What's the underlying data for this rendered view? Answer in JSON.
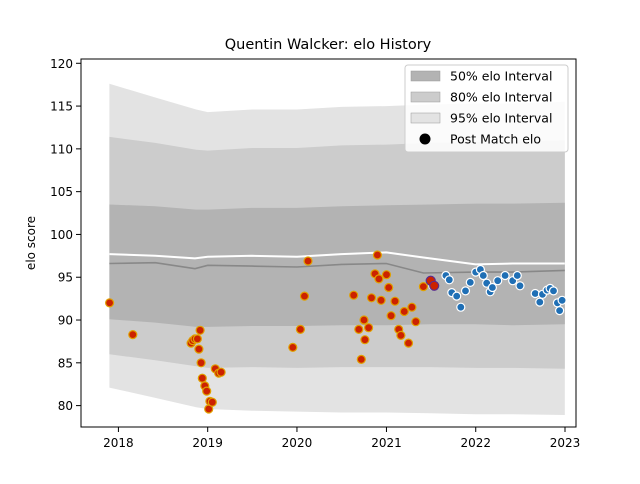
{
  "chart_data": {
    "type": "scatter",
    "title": "Quentin Walcker: elo History",
    "xlabel": "",
    "ylabel": "elo score",
    "xlim": [
      "2017-08-01",
      "2023-02-15"
    ],
    "ylim": [
      77.5,
      120.5
    ],
    "x_ticks": [
      "2018",
      "2019",
      "2020",
      "2021",
      "2022",
      "2023"
    ],
    "y_ticks": [
      "80",
      "85",
      "90",
      "95",
      "100",
      "105",
      "110",
      "115",
      "120"
    ],
    "legend_position": "top-right",
    "grid": false,
    "legend": [
      {
        "label": "50% elo Interval",
        "kind": "band",
        "color": "#b3b3b3"
      },
      {
        "label": "80% elo Interval",
        "kind": "band",
        "color": "#cccccc"
      },
      {
        "label": "95% elo Interval",
        "kind": "band",
        "color": "#e3e3e3"
      },
      {
        "label": "Post Match elo",
        "kind": "marker",
        "color": "#000000"
      }
    ],
    "intervals": {
      "x": [
        "2017-11-25",
        "2018-06-01",
        "2018-11-15",
        "2019-01-01",
        "2019-07-01",
        "2020-01-01",
        "2020-07-01",
        "2020-12-31",
        "2021-07-01",
        "2022-01-01",
        "2022-06-01",
        "2022-12-31"
      ],
      "p95_lower": [
        82.1,
        80.9,
        79.8,
        79.6,
        79.4,
        79.3,
        79.2,
        79.2,
        79.1,
        79.0,
        79.0,
        78.9
      ],
      "p95_upper": [
        117.6,
        116.0,
        114.6,
        114.3,
        114.6,
        114.6,
        114.9,
        115.0,
        115.2,
        115.3,
        115.3,
        115.5
      ],
      "p80_lower": [
        86.0,
        85.3,
        84.6,
        84.4,
        84.5,
        84.4,
        84.5,
        84.5,
        84.5,
        84.4,
        84.4,
        84.3
      ],
      "p80_upper": [
        111.4,
        110.7,
        109.9,
        109.8,
        110.1,
        110.1,
        110.4,
        110.5,
        110.7,
        110.8,
        110.8,
        111.0
      ],
      "p50_lower": [
        90.1,
        89.7,
        89.2,
        89.2,
        89.3,
        89.3,
        89.4,
        89.4,
        89.5,
        89.5,
        89.4,
        89.5
      ],
      "p50_upper": [
        103.5,
        103.3,
        102.9,
        102.9,
        103.1,
        103.1,
        103.3,
        103.4,
        103.5,
        103.6,
        103.6,
        103.7
      ]
    },
    "series": [
      {
        "label": "",
        "x": [
          "2017-11-25",
          "2018-06-01",
          "2018-11-10",
          "2019-01-01",
          "2019-07-01",
          "2020-01-01",
          "2020-07-01",
          "2020-12-31",
          "2021-06-01",
          "2022-01-01",
          "2022-06-01",
          "2022-12-31"
        ],
        "y": [
          96.6,
          96.7,
          96.0,
          96.4,
          96.3,
          96.2,
          96.5,
          96.6,
          95.5,
          95.6,
          95.6,
          95.8
        ],
        "color": "#888888"
      },
      {
        "label": "",
        "x": [
          "2017-11-25",
          "2018-06-01",
          "2018-11-10",
          "2019-01-01",
          "2019-07-01",
          "2020-01-01",
          "2020-07-01",
          "2020-12-31",
          "2021-06-01",
          "2022-01-01",
          "2022-06-01",
          "2022-12-31"
        ],
        "y": [
          97.7,
          97.5,
          97.2,
          97.4,
          97.5,
          97.4,
          97.7,
          97.9,
          97.3,
          96.5,
          96.6,
          96.6
        ],
        "color": "#ffffff"
      }
    ],
    "points_historical": {
      "color": "#cc2200",
      "edge": "#e0a000",
      "x": [
        "2017-11-26",
        "2018-03-01",
        "2018-10-25",
        "2018-11-01",
        "2018-11-10",
        "2018-11-20",
        "2018-11-26",
        "2018-12-01",
        "2018-12-05",
        "2018-12-10",
        "2018-12-20",
        "2018-12-28",
        "2019-01-05",
        "2019-01-10",
        "2019-01-20",
        "2019-02-01",
        "2019-02-15",
        "2019-02-25",
        "2019-12-15",
        "2020-01-15",
        "2020-02-01",
        "2020-02-15",
        "2020-08-20",
        "2020-09-10",
        "2020-09-20",
        "2020-10-01",
        "2020-10-05",
        "2020-10-20",
        "2020-11-01",
        "2020-11-15",
        "2020-11-25",
        "2020-12-01",
        "2020-12-10",
        "2021-01-01",
        "2021-01-10",
        "2021-01-20",
        "2021-02-05",
        "2021-02-20",
        "2021-03-01",
        "2021-03-15",
        "2021-04-01",
        "2021-04-15",
        "2021-05-01",
        "2021-06-01"
      ],
      "y": [
        92.0,
        88.3,
        87.3,
        87.6,
        87.8,
        87.8,
        86.6,
        88.8,
        85.0,
        83.2,
        82.3,
        81.7,
        79.6,
        80.5,
        80.4,
        84.3,
        83.8,
        83.9,
        86.8,
        88.9,
        92.8,
        96.9,
        92.9,
        88.9,
        85.4,
        90.0,
        87.7,
        89.1,
        92.6,
        95.4,
        97.6,
        94.8,
        92.3,
        95.3,
        93.8,
        90.5,
        92.2,
        88.9,
        88.2,
        91.0,
        87.3,
        91.5,
        89.8,
        93.9
      ]
    },
    "points_post_match": {
      "color": "#1f6fb5",
      "edge": "#ffffff",
      "x": [
        "2021-07-01",
        "2021-07-10",
        "2021-09-01",
        "2021-09-15",
        "2021-09-25",
        "2021-10-15",
        "2021-11-01",
        "2021-11-20",
        "2021-12-10",
        "2022-01-01",
        "2022-01-20",
        "2022-02-01",
        "2022-02-15",
        "2022-03-01",
        "2022-03-10",
        "2022-04-01",
        "2022-05-01",
        "2022-06-01",
        "2022-06-20",
        "2022-07-01",
        "2022-09-01",
        "2022-09-20",
        "2022-10-01",
        "2022-10-20",
        "2022-11-01",
        "2022-11-15",
        "2022-12-01",
        "2022-12-10",
        "2022-12-20"
      ],
      "y": [
        94.6,
        94.0,
        95.2,
        94.7,
        93.2,
        92.8,
        91.5,
        93.4,
        94.4,
        95.6,
        95.9,
        95.2,
        94.3,
        93.3,
        93.8,
        94.6,
        95.2,
        94.6,
        95.2,
        94.0,
        93.1,
        92.1,
        93.0,
        93.5,
        93.7,
        93.4,
        92.0,
        91.1,
        92.3
      ]
    },
    "points_highlight": {
      "color": "#cc2200",
      "edge": "#5b2d8e",
      "x": [
        "2021-07-01",
        "2021-07-15"
      ],
      "y": [
        94.6,
        94.0
      ]
    }
  }
}
